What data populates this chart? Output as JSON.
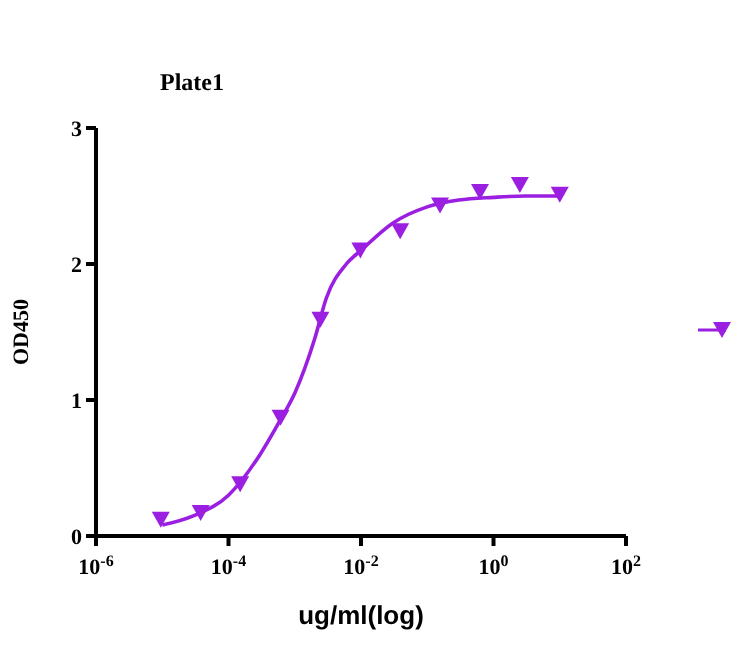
{
  "chart_data": {
    "type": "scatter",
    "title": "Plate1",
    "xlabel": "ug/ml(log)",
    "ylabel": "OD450",
    "log": "x",
    "xlim": [
      1e-06,
      100
    ],
    "xticks": [
      {
        "value": 1e-06,
        "label": "10$^{-6}$"
      },
      {
        "value": 0.0001,
        "label": "10$^{-4}$"
      },
      {
        "value": 0.01,
        "label": "10$^{-2}$"
      },
      {
        "value": 1,
        "label": "10$^{0}$"
      },
      {
        "value": 100,
        "label": "10$^{2}$"
      }
    ],
    "ylim": [
      0,
      3
    ],
    "yticks": [
      0,
      1,
      2,
      3
    ],
    "series": [
      {
        "marker": "triangle",
        "color": "#9b1fe0",
        "x": [
          9.5e-06,
          3.8e-05,
          0.00015,
          0.00061,
          0.00244,
          0.0098,
          0.039,
          0.156,
          0.625,
          2.5,
          10
        ],
        "values": [
          0.12,
          0.17,
          0.38,
          0.87,
          1.59,
          2.1,
          2.24,
          2.43,
          2.53,
          2.58,
          2.51
        ]
      },
      {
        "type": "line",
        "marker": "none",
        "color": "#9b1fe0",
        "x": [
          1e-05,
          3e-05,
          0.0001,
          0.0003,
          0.0006,
          0.001,
          0.002,
          0.003,
          0.006,
          0.01,
          0.03,
          0.1,
          0.3,
          1,
          3,
          10
        ],
        "values": [
          0.08,
          0.15,
          0.3,
          0.6,
          0.85,
          1.05,
          1.45,
          1.75,
          2.0,
          2.1,
          2.3,
          2.42,
          2.47,
          2.49,
          2.5,
          2.5
        ]
      }
    ]
  }
}
